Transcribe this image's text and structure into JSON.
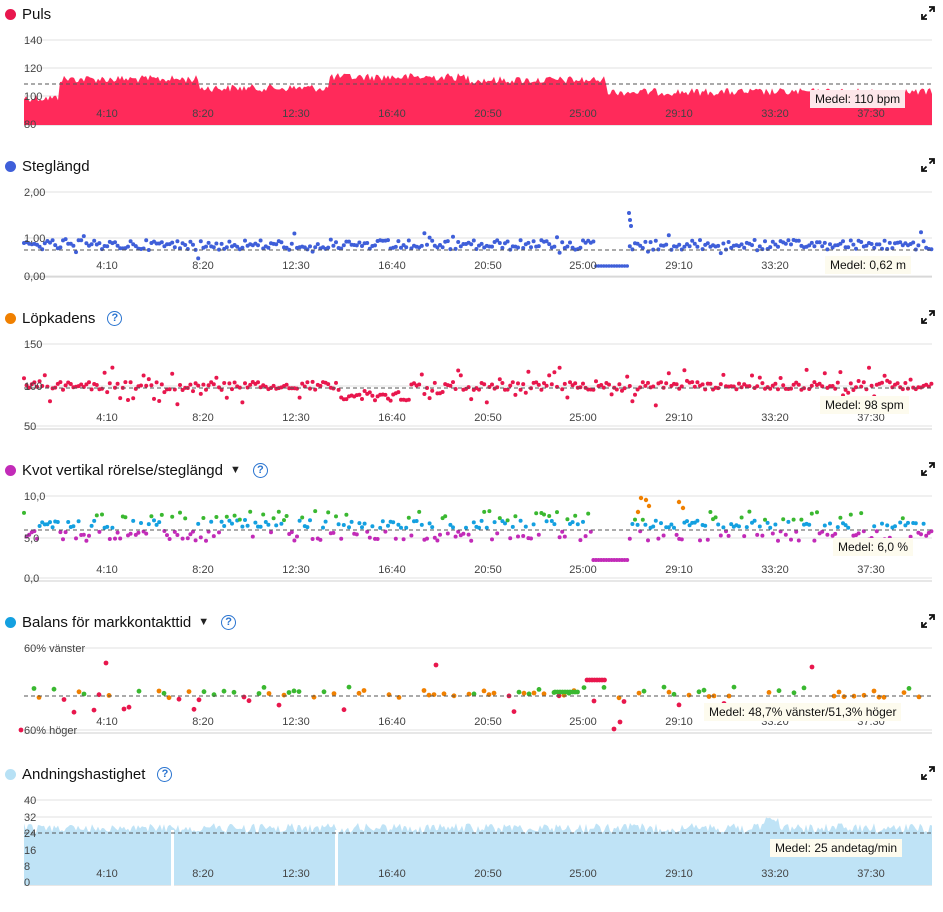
{
  "x_ticks": [
    "4:10",
    "8:20",
    "12:30",
    "16:40",
    "20:50",
    "25:00",
    "29:10",
    "33:20",
    "37:30"
  ],
  "panels": [
    {
      "id": "puls",
      "title": "Puls",
      "dot_color": "#e8174d",
      "has_caret": false,
      "has_help": false,
      "y_ticks": [
        "140",
        "120",
        "100",
        "80"
      ],
      "avg_label": "Medel: 110 bpm",
      "chart_data": {
        "type": "area",
        "series": [
          {
            "values_range": [
              100,
              121
            ],
            "mean": 110
          }
        ],
        "ylim": [
          80,
          140
        ],
        "mean": 110,
        "color": "#ff2a5a"
      }
    },
    {
      "id": "steglangd",
      "title": "Steglängd",
      "dot_color": "#3f5fd9",
      "has_caret": false,
      "has_help": false,
      "y_ticks": [
        "2,00",
        "1,00",
        "0,00"
      ],
      "avg_label": "Medel: 0,62 m",
      "chart_data": {
        "type": "scatter",
        "ylim": [
          0,
          2
        ],
        "mean": 0.62,
        "color": "#3f5fd9"
      }
    },
    {
      "id": "lopkadens",
      "title": "Löpkadens",
      "dot_color": "#f08000",
      "has_caret": false,
      "has_help": true,
      "y_ticks": [
        "150",
        "100",
        "50"
      ],
      "avg_label": "Medel: 98 spm",
      "chart_data": {
        "type": "scatter",
        "ylim": [
          50,
          150
        ],
        "mean": 98,
        "color": "#e8174d"
      }
    },
    {
      "id": "kvot",
      "title": "Kvot vertikal rörelse/steglängd",
      "dot_color": "#c22bb8",
      "has_caret": true,
      "has_help": true,
      "y_ticks": [
        "10,0",
        "5,0",
        "0,0"
      ],
      "avg_label": "Medel: 6,0 %",
      "chart_data": {
        "type": "scatter",
        "ylim": [
          0,
          10
        ],
        "mean": 6.0
      }
    },
    {
      "id": "balans",
      "title": "Balans för markkontakttid",
      "dot_color": "#14a0e0",
      "has_caret": true,
      "has_help": true,
      "y_ticks": [
        "60% vänster",
        "60% höger"
      ],
      "avg_label": "Medel: 48,7% vänster/51,3% höger",
      "chart_data": {
        "type": "scatter",
        "mean_left_pct": 48.7,
        "mean_right_pct": 51.3
      }
    },
    {
      "id": "andning",
      "title": "Andningshastighet",
      "dot_color": "#b7e1f5",
      "has_caret": false,
      "has_help": true,
      "y_ticks": [
        "40",
        "32",
        "24",
        "16",
        "8",
        "0"
      ],
      "avg_label": "Medel: 25 andetag/min",
      "chart_data": {
        "type": "area",
        "ylim": [
          0,
          40
        ],
        "mean": 25,
        "color": "#bfe3f6"
      }
    }
  ]
}
